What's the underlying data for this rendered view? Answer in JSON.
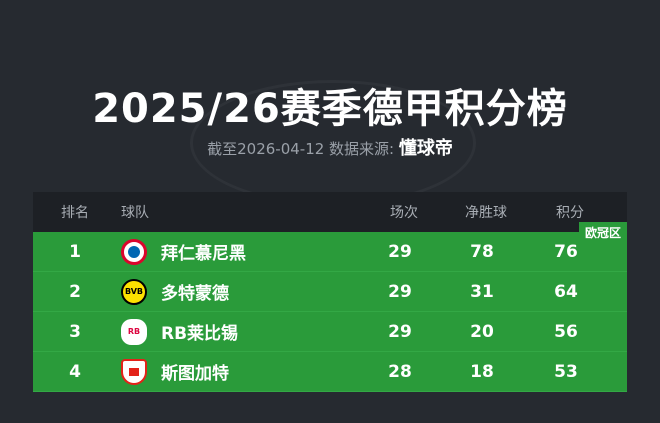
{
  "title": "2025/26赛季德甲积分榜",
  "subtitle": {
    "prefix": "截至2026-04-12 数据来源:",
    "source": "懂球帝"
  },
  "table": {
    "headers": {
      "rank": "排名",
      "team": "球队",
      "played": "场次",
      "goal_diff": "净胜球",
      "points": "积分"
    },
    "zone_badge": "欧冠区",
    "zone_color": "#2a9b3a",
    "rows": [
      {
        "rank": "1",
        "team": "拜仁慕尼黑",
        "played": "29",
        "goal_diff": "78",
        "points": "76",
        "logo": "bayern-logo"
      },
      {
        "rank": "2",
        "team": "多特蒙德",
        "played": "29",
        "goal_diff": "31",
        "points": "64",
        "logo": "dortmund-logo"
      },
      {
        "rank": "3",
        "team": "RB莱比锡",
        "played": "29",
        "goal_diff": "20",
        "points": "56",
        "logo": "leipzig-logo"
      },
      {
        "rank": "4",
        "team": "斯图加特",
        "played": "28",
        "goal_diff": "18",
        "points": "53",
        "logo": "stuttgart-logo"
      }
    ]
  }
}
